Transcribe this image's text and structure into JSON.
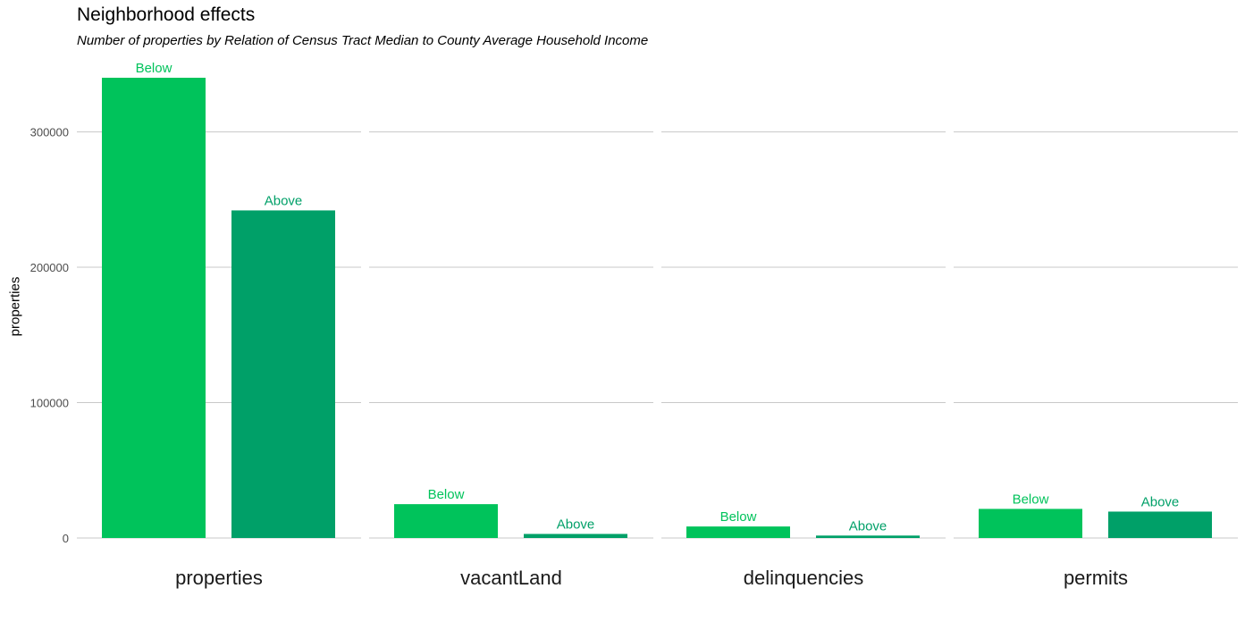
{
  "chart_data": {
    "type": "bar",
    "title": "Neighborhood effects",
    "subtitle": "Number of properties by Relation of Census Tract Median to County Average Household Income",
    "xlabel": "",
    "ylabel": "properties",
    "ylim": [
      0,
      340000
    ],
    "yticks": [
      0,
      100000,
      200000,
      300000
    ],
    "ytick_labels": [
      "0",
      "100000",
      "200000",
      "300000"
    ],
    "grid": true,
    "legend": "none",
    "facets": [
      "properties",
      "vacantLand",
      "delinquencies",
      "permits"
    ],
    "groups": [
      "Below",
      "Above"
    ],
    "colors": {
      "Below": "#00c35b",
      "Above": "#00a068"
    },
    "series": [
      {
        "name": "Below",
        "values": [
          340000,
          25000,
          8500,
          21500
        ]
      },
      {
        "name": "Above",
        "values": [
          242000,
          3000,
          1800,
          19500
        ]
      }
    ]
  }
}
